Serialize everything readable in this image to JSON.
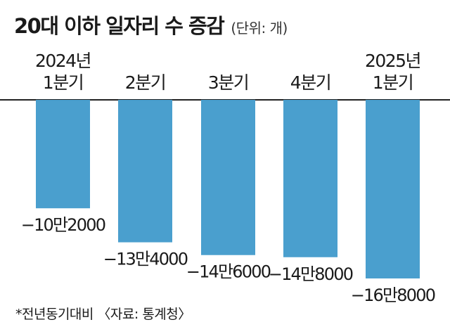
{
  "header": {
    "title": "20대 이하 일자리 수 증감",
    "unit": "(단위: 개)"
  },
  "footer": {
    "note": "*전년동기대비 〈자료: 통계청〉"
  },
  "chart_data": {
    "type": "bar",
    "categories": [
      [
        "2024년",
        "1분기"
      ],
      [
        "2분기"
      ],
      [
        "3분기"
      ],
      [
        "4분기"
      ],
      [
        "2025년",
        "1분기"
      ]
    ],
    "values": [
      -102000,
      -134000,
      -146000,
      -148000,
      -168000
    ],
    "value_labels": [
      "−10만2000",
      "−13만4000",
      "−14만6000",
      "−14만8000",
      "−16만8000"
    ],
    "grid": false,
    "legend": "none",
    "colors": {
      "bar": "#4a9fce",
      "baseline": "#222222"
    }
  }
}
